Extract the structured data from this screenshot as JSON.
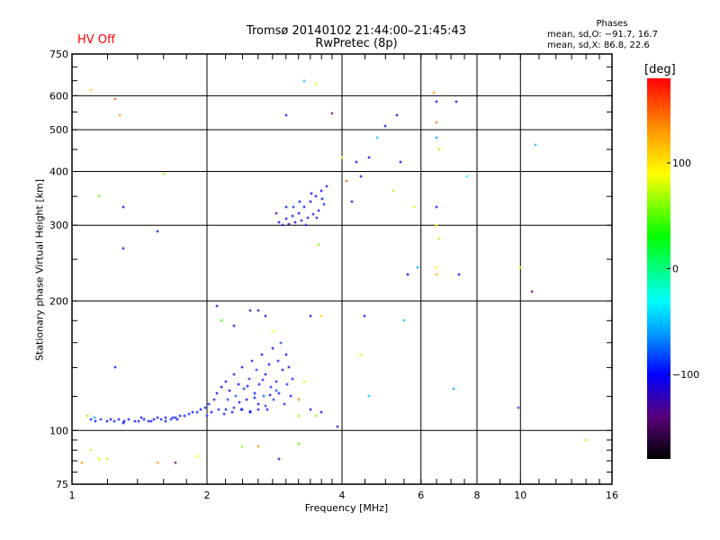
{
  "header": {
    "status": "HV Off",
    "title_line1": "Tromsø 20140102 21:44:00–21:45:43",
    "title_line2": "RwPretec (8p)",
    "phase_title": "Phases",
    "phase_o": "mean, sd,O: −91.7, 16.7",
    "phase_x": "mean, sd,X:  86.8, 22.6"
  },
  "colors": {
    "status": "#ff0000",
    "grid": "#000000"
  },
  "chart_data": {
    "type": "scatter",
    "title": "Tromsø 20140102 21:44:00–21:45:43",
    "xlabel": "Frequency [MHz]",
    "ylabel": "Stationary phase Virtual Height [km]",
    "xscale": "log",
    "yscale": "log",
    "xlim": [
      1,
      16
    ],
    "ylim": [
      75,
      750
    ],
    "xticks": [
      1,
      2,
      4,
      6,
      8,
      10,
      16
    ],
    "xtick_labels": [
      "1",
      "2",
      "4",
      "6",
      "8",
      "10",
      "16"
    ],
    "yticks": [
      75,
      100,
      200,
      300,
      400,
      500,
      600,
      750
    ],
    "ytick_labels": [
      "75",
      "100",
      "200",
      "300",
      "400",
      "500",
      "600",
      "750"
    ],
    "grid": true,
    "colorbar": {
      "label": "[deg]",
      "range": [
        -180,
        180
      ],
      "ticks": [
        100,
        0,
        -100
      ],
      "tick_labels": [
        "100",
        "0",
        "−100"
      ],
      "stops": [
        [
          -180,
          "#000000"
        ],
        [
          -140,
          "#5a007a"
        ],
        [
          -100,
          "#0000ff"
        ],
        [
          -60,
          "#00a0ff"
        ],
        [
          -30,
          "#00ffff"
        ],
        [
          0,
          "#00ff80"
        ],
        [
          30,
          "#00ff00"
        ],
        [
          90,
          "#ffff00"
        ],
        [
          130,
          "#ff9900"
        ],
        [
          180,
          "#ff0000"
        ]
      ]
    },
    "points_fields": [
      "freq_MHz",
      "height_km",
      "phase_deg"
    ],
    "points": [
      [
        1.1,
        106,
        -95
      ],
      [
        1.13,
        105,
        -100
      ],
      [
        1.16,
        106,
        -92
      ],
      [
        1.2,
        105,
        -100
      ],
      [
        1.24,
        105,
        -98
      ],
      [
        1.27,
        106,
        -95
      ],
      [
        1.31,
        105,
        -100
      ],
      [
        1.34,
        106,
        -96
      ],
      [
        1.38,
        105,
        -100
      ],
      [
        1.41,
        105,
        -95
      ],
      [
        1.45,
        106,
        -100
      ],
      [
        1.48,
        105,
        -97
      ],
      [
        1.52,
        106,
        -100
      ],
      [
        1.55,
        107,
        -98
      ],
      [
        1.58,
        106,
        -95
      ],
      [
        1.62,
        107,
        -100
      ],
      [
        1.66,
        106,
        -92
      ],
      [
        1.7,
        107,
        -100
      ],
      [
        1.74,
        108,
        -96
      ],
      [
        1.78,
        108,
        -100
      ],
      [
        1.82,
        109,
        -94
      ],
      [
        1.86,
        110,
        -100
      ],
      [
        1.9,
        110,
        -95
      ],
      [
        1.94,
        112,
        -100
      ],
      [
        1.98,
        113,
        -92
      ],
      [
        1.62,
        105,
        -100
      ],
      [
        1.68,
        107,
        -90
      ],
      [
        1.72,
        106,
        -98
      ],
      [
        1.5,
        105,
        -100
      ],
      [
        1.43,
        107,
        -100
      ],
      [
        1.3,
        104,
        -97
      ],
      [
        1.22,
        106,
        -100
      ],
      [
        1.12,
        107,
        -60
      ],
      [
        2.0,
        108,
        -100
      ],
      [
        2.02,
        115,
        -90
      ],
      [
        2.05,
        110,
        -100
      ],
      [
        2.08,
        118,
        -96
      ],
      [
        2.1,
        122,
        -100
      ],
      [
        2.12,
        112,
        -88
      ],
      [
        2.15,
        126,
        -100
      ],
      [
        2.18,
        109,
        -94
      ],
      [
        2.2,
        130,
        -100
      ],
      [
        2.22,
        118,
        -85
      ],
      [
        2.25,
        124,
        -100
      ],
      [
        2.28,
        110,
        -96
      ],
      [
        2.3,
        135,
        -100
      ],
      [
        2.32,
        120,
        -80
      ],
      [
        2.35,
        128,
        -100
      ],
      [
        2.38,
        112,
        -94
      ],
      [
        2.4,
        140,
        -100
      ],
      [
        2.42,
        125,
        -90
      ],
      [
        2.45,
        118,
        -100
      ],
      [
        2.48,
        132,
        -88
      ],
      [
        2.5,
        110,
        -100
      ],
      [
        2.52,
        145,
        -96
      ],
      [
        2.55,
        122,
        -100
      ],
      [
        2.58,
        138,
        -85
      ],
      [
        2.6,
        115,
        -100
      ],
      [
        2.62,
        128,
        -94
      ],
      [
        2.65,
        150,
        -100
      ],
      [
        2.68,
        120,
        -80
      ],
      [
        2.7,
        135,
        -100
      ],
      [
        2.72,
        112,
        -96
      ],
      [
        2.75,
        142,
        -100
      ],
      [
        2.78,
        126,
        -90
      ],
      [
        2.8,
        155,
        -100
      ],
      [
        2.82,
        118,
        -86
      ],
      [
        2.85,
        130,
        -100
      ],
      [
        2.88,
        145,
        -94
      ],
      [
        2.9,
        122,
        -100
      ],
      [
        2.92,
        160,
        -82
      ],
      [
        2.95,
        138,
        -100
      ],
      [
        2.98,
        115,
        -92
      ],
      [
        3.0,
        150,
        -100
      ],
      [
        3.02,
        128,
        -88
      ],
      [
        3.05,
        140,
        -120
      ],
      [
        3.08,
        120,
        -100
      ],
      [
        3.1,
        132,
        -95
      ],
      [
        2.2,
        112,
        -100
      ],
      [
        2.3,
        113,
        -92
      ],
      [
        2.4,
        112,
        -100
      ],
      [
        2.5,
        111,
        -96
      ],
      [
        2.6,
        112,
        -100
      ],
      [
        2.7,
        114,
        -90
      ],
      [
        2.36,
        116,
        -100
      ],
      [
        2.56,
        119,
        -94
      ],
      [
        2.76,
        121,
        -100
      ],
      [
        2.86,
        124,
        -85
      ],
      [
        2.46,
        127,
        -100
      ],
      [
        2.66,
        131,
        -96
      ],
      [
        2.9,
        305,
        -100
      ],
      [
        2.95,
        300,
        -120
      ],
      [
        3.0,
        310,
        -100
      ],
      [
        3.05,
        302,
        -130
      ],
      [
        3.1,
        315,
        -100
      ],
      [
        3.15,
        305,
        -110
      ],
      [
        3.2,
        320,
        -100
      ],
      [
        3.25,
        308,
        -120
      ],
      [
        3.3,
        330,
        -100
      ],
      [
        3.35,
        312,
        -110
      ],
      [
        3.4,
        340,
        -100
      ],
      [
        3.45,
        318,
        -95
      ],
      [
        3.5,
        350,
        -100
      ],
      [
        3.55,
        325,
        -110
      ],
      [
        3.6,
        360,
        -100
      ],
      [
        3.65,
        335,
        -95
      ],
      [
        3.7,
        370,
        -100
      ],
      [
        3.12,
        330,
        -90
      ],
      [
        3.22,
        340,
        -100
      ],
      [
        3.32,
        300,
        -110
      ],
      [
        3.42,
        355,
        -100
      ],
      [
        3.52,
        312,
        -120
      ],
      [
        3.62,
        345,
        -100
      ],
      [
        2.85,
        320,
        -140
      ],
      [
        3.0,
        330,
        -100
      ],
      [
        1.1,
        620,
        110
      ],
      [
        1.25,
        590,
        150
      ],
      [
        1.28,
        540,
        130
      ],
      [
        1.15,
        350,
        50
      ],
      [
        1.3,
        330,
        -100
      ],
      [
        1.3,
        265,
        -100
      ],
      [
        1.25,
        140,
        -100
      ],
      [
        1.55,
        290,
        -100
      ],
      [
        1.6,
        395,
        60
      ],
      [
        2.1,
        195,
        -110
      ],
      [
        2.15,
        180,
        40
      ],
      [
        2.3,
        175,
        -100
      ],
      [
        2.5,
        190,
        -120
      ],
      [
        2.6,
        190,
        -120
      ],
      [
        2.7,
        185,
        -100
      ],
      [
        2.8,
        170,
        90
      ],
      [
        3.0,
        540,
        -120
      ],
      [
        3.3,
        650,
        -50
      ],
      [
        3.5,
        640,
        100
      ],
      [
        3.8,
        545,
        -140
      ],
      [
        3.55,
        270,
        60
      ],
      [
        3.4,
        185,
        -100
      ],
      [
        3.6,
        185,
        110
      ],
      [
        4.0,
        430,
        80
      ],
      [
        4.1,
        380,
        150
      ],
      [
        4.2,
        340,
        -100
      ],
      [
        4.3,
        420,
        -100
      ],
      [
        4.4,
        390,
        -100
      ],
      [
        4.6,
        430,
        -100
      ],
      [
        4.8,
        480,
        -50
      ],
      [
        5.0,
        510,
        -100
      ],
      [
        5.2,
        360,
        110
      ],
      [
        5.3,
        540,
        -120
      ],
      [
        5.4,
        420,
        -100
      ],
      [
        5.8,
        330,
        80
      ],
      [
        5.6,
        230,
        -100
      ],
      [
        5.9,
        240,
        -60
      ],
      [
        6.4,
        610,
        130
      ],
      [
        6.5,
        520,
        140
      ],
      [
        6.5,
        580,
        -100
      ],
      [
        6.5,
        480,
        -60
      ],
      [
        6.6,
        450,
        110
      ],
      [
        6.5,
        330,
        -100
      ],
      [
        6.5,
        300,
        90
      ],
      [
        6.6,
        280,
        110
      ],
      [
        6.5,
        240,
        100
      ],
      [
        6.5,
        230,
        120
      ],
      [
        7.2,
        580,
        -100
      ],
      [
        7.3,
        230,
        -100
      ],
      [
        7.6,
        390,
        -30
      ],
      [
        7.1,
        125,
        -60
      ],
      [
        5.5,
        180,
        -50
      ],
      [
        4.5,
        185,
        -100
      ],
      [
        4.6,
        120,
        -50
      ],
      [
        4.4,
        150,
        100
      ],
      [
        10.0,
        240,
        100
      ],
      [
        10.6,
        210,
        -140
      ],
      [
        10.8,
        460,
        -50
      ],
      [
        9.9,
        113,
        -80
      ],
      [
        14.0,
        95,
        110
      ],
      [
        3.2,
        118,
        140
      ],
      [
        3.3,
        130,
        100
      ],
      [
        3.4,
        112,
        -110
      ],
      [
        3.6,
        110,
        -100
      ],
      [
        3.5,
        108,
        60
      ],
      [
        3.2,
        108,
        60
      ],
      [
        3.9,
        102,
        -120
      ],
      [
        1.08,
        108,
        60
      ],
      [
        1.1,
        90,
        100
      ],
      [
        1.15,
        86,
        80
      ],
      [
        1.2,
        86,
        70
      ],
      [
        1.05,
        84,
        130
      ],
      [
        1.55,
        84,
        130
      ],
      [
        1.7,
        84,
        -140
      ],
      [
        1.9,
        87,
        90
      ],
      [
        2.4,
        92,
        60
      ],
      [
        2.6,
        92,
        130
      ],
      [
        2.9,
        86,
        -110
      ],
      [
        3.2,
        93,
        50
      ]
    ]
  }
}
